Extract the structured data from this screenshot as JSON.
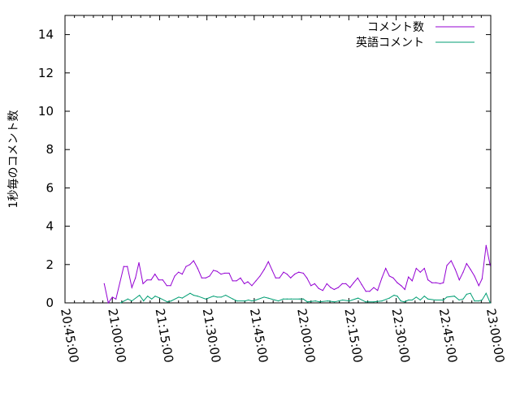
{
  "chart_data": {
    "type": "line",
    "title": "",
    "xlabel": "",
    "ylabel": "1秒毎のコメント数",
    "xlim": [
      "20:45:00",
      "23:00:00"
    ],
    "ylim": [
      0,
      15
    ],
    "x_ticks": [
      "20:45:00",
      "21:00:00",
      "21:15:00",
      "21:30:00",
      "21:45:00",
      "22:00:00",
      "22:15:00",
      "22:30:00",
      "22:45:00",
      "23:00:00"
    ],
    "y_ticks": [
      "0",
      "2",
      "4",
      "6",
      "8",
      "10",
      "12",
      "14"
    ],
    "grid": false,
    "legend_position": "top-right",
    "series": [
      {
        "name": "コメント数",
        "color": "#9400d3",
        "points": [
          [
            "20:57:26",
            1.0
          ],
          [
            "20:58:44",
            0.0
          ],
          [
            "21:00:01",
            0.3
          ],
          [
            "21:01:09",
            0.2
          ],
          [
            "21:03:38",
            1.9
          ],
          [
            "21:04:46",
            1.9
          ],
          [
            "21:06:12",
            0.8
          ],
          [
            "21:07:20",
            1.3
          ],
          [
            "21:08:27",
            2.1
          ],
          [
            "21:09:44",
            1.0
          ],
          [
            "21:11:01",
            1.2
          ],
          [
            "21:12:19",
            1.2
          ],
          [
            "21:13:31",
            1.5
          ],
          [
            "21:14:42",
            1.2
          ],
          [
            "21:15:59",
            1.2
          ],
          [
            "21:17:17",
            0.9
          ],
          [
            "21:18:30",
            0.9
          ],
          [
            "21:19:47",
            1.4
          ],
          [
            "21:21:00",
            1.6
          ],
          [
            "21:22:11",
            1.5
          ],
          [
            "21:23:23",
            1.9
          ],
          [
            "21:24:36",
            2.0
          ],
          [
            "21:25:47",
            2.2
          ],
          [
            "21:27:04",
            1.8
          ],
          [
            "21:28:22",
            1.3
          ],
          [
            "21:29:39",
            1.3
          ],
          [
            "21:30:52",
            1.4
          ],
          [
            "21:32:04",
            1.7
          ],
          [
            "21:33:11",
            1.65
          ],
          [
            "21:34:28",
            1.5
          ],
          [
            "21:35:41",
            1.55
          ],
          [
            "21:37:03",
            1.55
          ],
          [
            "21:38:09",
            1.15
          ],
          [
            "21:39:22",
            1.15
          ],
          [
            "21:40:39",
            1.3
          ],
          [
            "21:41:52",
            1.0
          ],
          [
            "21:42:58",
            1.1
          ],
          [
            "21:44:15",
            0.9
          ],
          [
            "21:45:33",
            1.15
          ],
          [
            "21:46:50",
            1.4
          ],
          [
            "21:48:12",
            1.75
          ],
          [
            "21:49:29",
            2.15
          ],
          [
            "21:50:42",
            1.7
          ],
          [
            "21:51:48",
            1.3
          ],
          [
            "21:53:01",
            1.3
          ],
          [
            "21:54:18",
            1.6
          ],
          [
            "21:55:25",
            1.5
          ],
          [
            "21:56:33",
            1.3
          ],
          [
            "21:57:50",
            1.5
          ],
          [
            "21:59:07",
            1.6
          ],
          [
            "22:00:34",
            1.55
          ],
          [
            "22:01:42",
            1.3
          ],
          [
            "22:02:59",
            0.9
          ],
          [
            "22:04:10",
            1.0
          ],
          [
            "22:05:28",
            0.75
          ],
          [
            "22:06:45",
            0.65
          ],
          [
            "22:08:02",
            1.0
          ],
          [
            "22:09:15",
            0.8
          ],
          [
            "22:10:21",
            0.7
          ],
          [
            "22:11:38",
            0.8
          ],
          [
            "22:12:56",
            1.0
          ],
          [
            "22:14:04",
            1.0
          ],
          [
            "22:15:21",
            0.8
          ],
          [
            "22:16:32",
            1.05
          ],
          [
            "22:17:50",
            1.3
          ],
          [
            "22:19:07",
            0.95
          ],
          [
            "22:20:24",
            0.6
          ],
          [
            "22:21:37",
            0.6
          ],
          [
            "22:22:54",
            0.8
          ],
          [
            "22:24:07",
            0.65
          ],
          [
            "22:25:29",
            1.3
          ],
          [
            "22:26:41",
            1.8
          ],
          [
            "22:27:52",
            1.4
          ],
          [
            "22:29:05",
            1.3
          ],
          [
            "22:30:22",
            1.05
          ],
          [
            "22:31:35",
            0.9
          ],
          [
            "22:32:46",
            0.7
          ],
          [
            "22:33:54",
            1.35
          ],
          [
            "22:35:05",
            1.15
          ],
          [
            "22:36:23",
            1.8
          ],
          [
            "22:37:40",
            1.6
          ],
          [
            "22:38:57",
            1.8
          ],
          [
            "22:40:05",
            1.2
          ],
          [
            "22:41:22",
            1.05
          ],
          [
            "22:42:40",
            1.05
          ],
          [
            "22:43:57",
            1.0
          ],
          [
            "22:44:59",
            1.05
          ],
          [
            "22:46:05",
            1.95
          ],
          [
            "22:47:27",
            2.2
          ],
          [
            "22:48:44",
            1.75
          ],
          [
            "22:50:02",
            1.2
          ],
          [
            "22:51:14",
            1.6
          ],
          [
            "22:52:21",
            2.05
          ],
          [
            "22:53:34",
            1.75
          ],
          [
            "22:54:51",
            1.4
          ],
          [
            "22:56:13",
            0.9
          ],
          [
            "22:57:14",
            1.25
          ],
          [
            "22:58:32",
            3.0
          ],
          [
            "22:59:49",
            1.95
          ]
        ]
      },
      {
        "name": "英語コメント",
        "color": "#009e73",
        "points": [
          [
            "21:02:36",
            0.0
          ],
          [
            "21:04:55",
            0.2
          ],
          [
            "21:06:12",
            0.1
          ],
          [
            "21:08:38",
            0.4
          ],
          [
            "21:09:55",
            0.1
          ],
          [
            "21:11:12",
            0.35
          ],
          [
            "21:12:29",
            0.2
          ],
          [
            "21:13:36",
            0.35
          ],
          [
            "21:15:04",
            0.25
          ],
          [
            "21:17:28",
            0.05
          ],
          [
            "21:18:40",
            0.1
          ],
          [
            "21:21:04",
            0.3
          ],
          [
            "21:22:11",
            0.25
          ],
          [
            "21:24:41",
            0.5
          ],
          [
            "21:25:47",
            0.4
          ],
          [
            "21:27:04",
            0.35
          ],
          [
            "21:29:39",
            0.2
          ],
          [
            "21:32:04",
            0.35
          ],
          [
            "21:33:15",
            0.3
          ],
          [
            "21:34:32",
            0.3
          ],
          [
            "21:35:56",
            0.4
          ],
          [
            "21:38:15",
            0.2
          ],
          [
            "21:39:32",
            0.1
          ],
          [
            "21:42:07",
            0.1
          ],
          [
            "21:43:09",
            0.15
          ],
          [
            "21:44:15",
            0.1
          ],
          [
            "21:45:33",
            0.15
          ],
          [
            "21:48:07",
            0.3
          ],
          [
            "21:49:25",
            0.25
          ],
          [
            "21:51:33",
            0.15
          ],
          [
            "21:52:41",
            0.1
          ],
          [
            "21:54:14",
            0.2
          ],
          [
            "21:55:25",
            0.2
          ],
          [
            "21:56:42",
            0.2
          ],
          [
            "21:59:17",
            0.2
          ],
          [
            "22:00:34",
            0.2
          ],
          [
            "22:01:51",
            0.05
          ],
          [
            "22:04:26",
            0.1
          ],
          [
            "22:05:43",
            0.05
          ],
          [
            "22:08:18",
            0.1
          ],
          [
            "22:10:27",
            0.05
          ],
          [
            "22:13:02",
            0.15
          ],
          [
            "22:15:10",
            0.1
          ],
          [
            "22:17:56",
            0.25
          ],
          [
            "22:20:20",
            0.05
          ],
          [
            "22:22:54",
            0.05
          ],
          [
            "22:25:29",
            0.1
          ],
          [
            "22:27:53",
            0.25
          ],
          [
            "22:29:21",
            0.4
          ],
          [
            "22:30:22",
            0.35
          ],
          [
            "22:31:29",
            0.1
          ],
          [
            "22:32:37",
            0.05
          ],
          [
            "22:33:54",
            0.15
          ],
          [
            "22:35:05",
            0.15
          ],
          [
            "22:36:23",
            0.3
          ],
          [
            "22:37:40",
            0.15
          ],
          [
            "22:38:57",
            0.35
          ],
          [
            "22:40:05",
            0.2
          ],
          [
            "22:42:29",
            0.15
          ],
          [
            "22:44:59",
            0.15
          ],
          [
            "22:46:05",
            0.3
          ],
          [
            "22:48:29",
            0.35
          ],
          [
            "22:49:57",
            0.15
          ],
          [
            "22:51:14",
            0.2
          ],
          [
            "22:52:21",
            0.45
          ],
          [
            "22:53:34",
            0.5
          ],
          [
            "22:54:51",
            0.1
          ],
          [
            "22:56:09",
            0.1
          ],
          [
            "22:57:14",
            0.15
          ],
          [
            "22:58:32",
            0.5
          ],
          [
            "22:59:49",
            0.0
          ]
        ]
      }
    ]
  }
}
